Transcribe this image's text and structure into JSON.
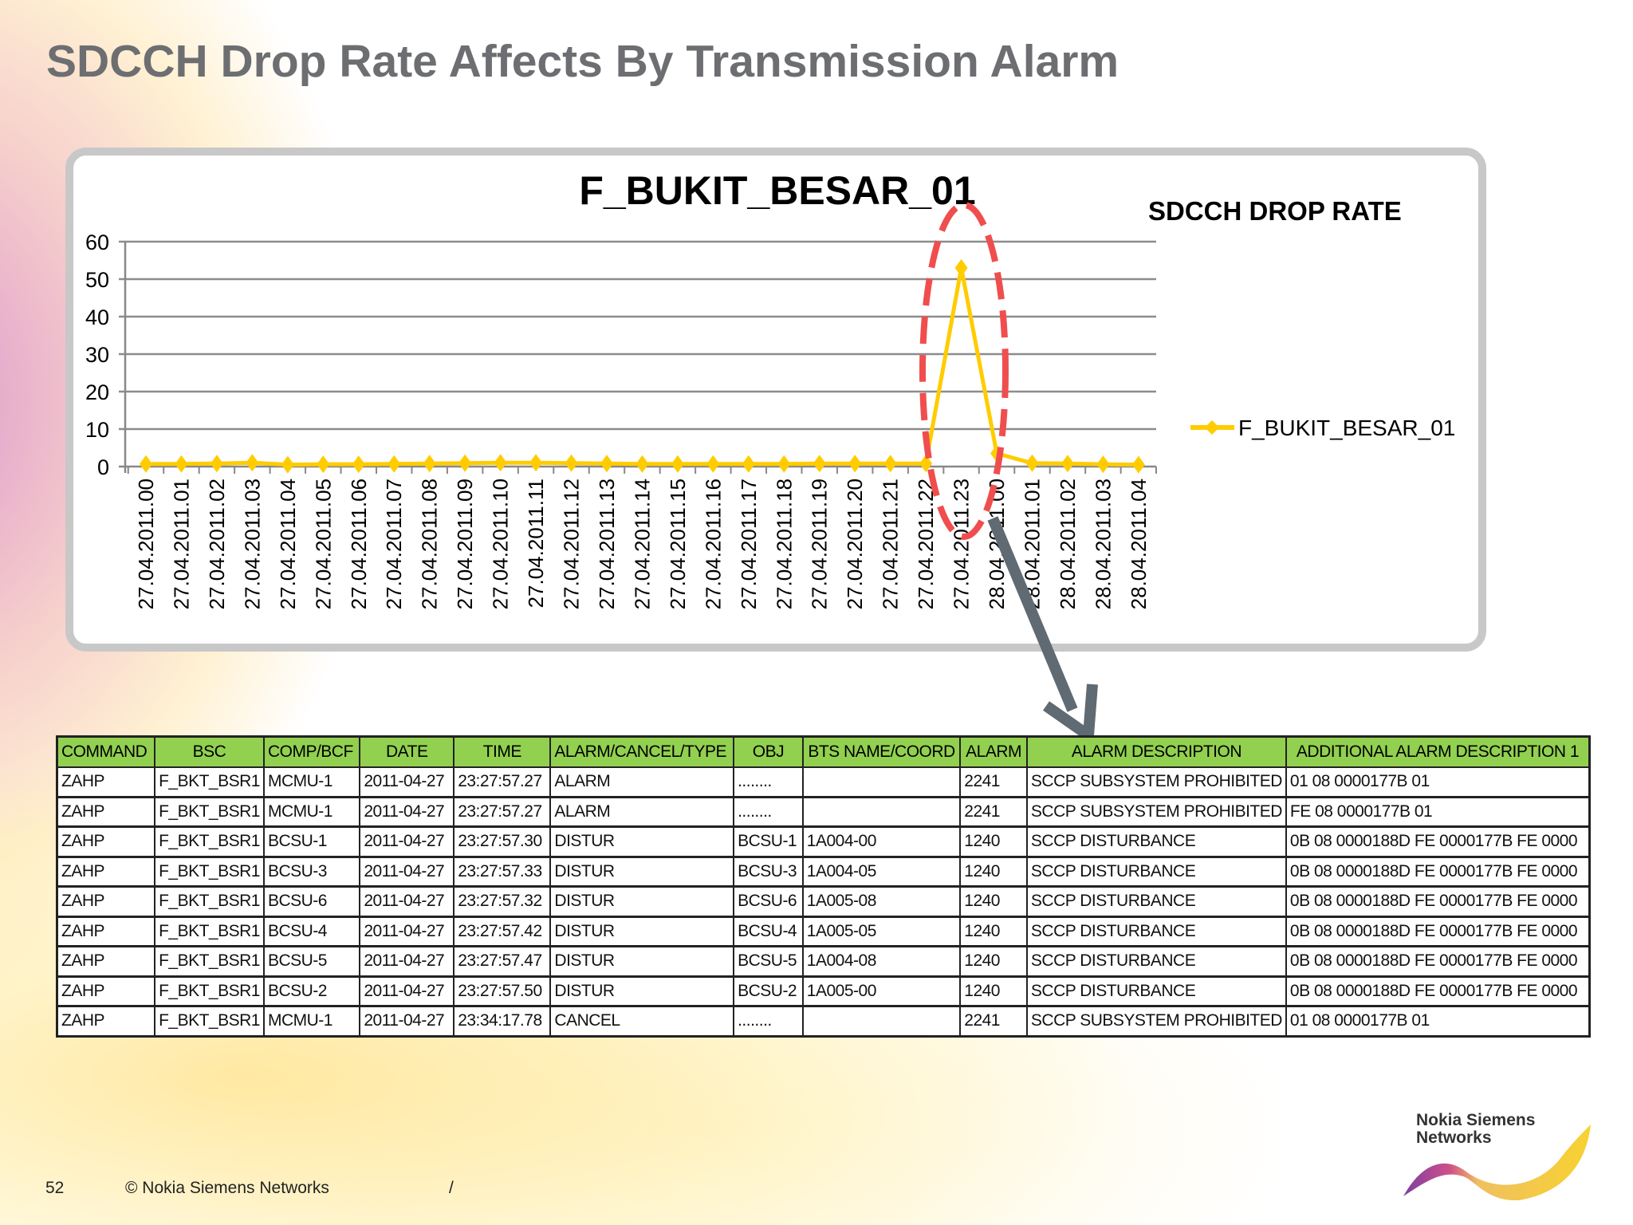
{
  "slide": {
    "title": "SDCCH Drop Rate Affects By Transmission Alarm",
    "page_number": "52",
    "copyright": "© Nokia Siemens Networks",
    "separator": "/",
    "logo_text": [
      "Nokia Siemens",
      "Networks"
    ]
  },
  "chart_data": {
    "type": "line",
    "title": "F_BUKIT_BESAR_01",
    "side_label": "SDCCH DROP RATE",
    "legend": "right",
    "grid": true,
    "ylim": [
      0,
      60
    ],
    "yticks": [
      "0",
      "10",
      "20",
      "30",
      "40",
      "50",
      "60"
    ],
    "line_color": "#ffcc00",
    "highlight_color": "#f04e4e",
    "arrow_color": "#5f6a72",
    "categories": [
      "27.04.2011.00",
      "27.04.2011.01",
      "27.04.2011.02",
      "27.04.2011.03",
      "27.04.2011.04",
      "27.04.2011.05",
      "27.04.2011.06",
      "27.04.2011.07",
      "27.04.2011.08",
      "27.04.2011.09",
      "27.04.2011.10",
      "27.04.2011.11",
      "27.04.2011.12",
      "27.04.2011.13",
      "27.04.2011.14",
      "27.04.2011.15",
      "27.04.2011.16",
      "27.04.2011.17",
      "27.04.2011.18",
      "27.04.2011.19",
      "27.04.2011.20",
      "27.04.2011.21",
      "27.04.2011.22",
      "27.04.2011.23",
      "28.04.2011.00",
      "28.04.2011.01",
      "28.04.2011.02",
      "28.04.2011.03",
      "28.04.2011.04"
    ],
    "series": [
      {
        "name": "F_BUKIT_BESAR_01",
        "values": [
          0.7,
          0.7,
          0.8,
          1.0,
          0.5,
          0.6,
          0.6,
          0.7,
          0.8,
          0.9,
          1.0,
          1.0,
          0.9,
          0.8,
          0.7,
          0.7,
          0.7,
          0.7,
          0.7,
          0.8,
          0.8,
          0.8,
          0.8,
          53,
          3.5,
          0.9,
          0.8,
          0.6,
          0.5
        ]
      }
    ]
  },
  "table": {
    "header_color": "#92d050",
    "columns": [
      "COMMAND",
      "BSC",
      "COMP/BCF",
      "DATE",
      "TIME",
      "ALARM/CANCEL/TYPE",
      "OBJ",
      "BTS NAME/COORD",
      "ALARM",
      "ALARM DESCRIPTION",
      "ADDITIONAL ALARM DESCRIPTION 1"
    ],
    "rows": [
      [
        "ZAHP",
        "F_BKT_BSR1",
        "MCMU-1",
        "2011-04-27",
        "23:27:57.27",
        "ALARM",
        "........",
        "",
        "2241",
        "SCCP SUBSYSTEM PROHIBITED",
        "01 08 0000177B 01"
      ],
      [
        "ZAHP",
        "F_BKT_BSR1",
        "MCMU-1",
        "2011-04-27",
        "23:27:57.27",
        "ALARM",
        "........",
        "",
        "2241",
        "SCCP SUBSYSTEM PROHIBITED",
        "FE 08 0000177B 01"
      ],
      [
        "ZAHP",
        "F_BKT_BSR1",
        "BCSU-1",
        "2011-04-27",
        "23:27:57.30",
        "DISTUR",
        "BCSU-1",
        "1A004-00",
        "1240",
        "SCCP DISTURBANCE",
        "0B 08 0000188D FE 0000177B FE 0000"
      ],
      [
        "ZAHP",
        "F_BKT_BSR1",
        "BCSU-3",
        "2011-04-27",
        "23:27:57.33",
        "DISTUR",
        "BCSU-3",
        "1A004-05",
        "1240",
        "SCCP DISTURBANCE",
        "0B 08 0000188D FE 0000177B FE 0000"
      ],
      [
        "ZAHP",
        "F_BKT_BSR1",
        "BCSU-6",
        "2011-04-27",
        "23:27:57.32",
        "DISTUR",
        "BCSU-6",
        "1A005-08",
        "1240",
        "SCCP DISTURBANCE",
        "0B 08 0000188D FE 0000177B FE 0000"
      ],
      [
        "ZAHP",
        "F_BKT_BSR1",
        "BCSU-4",
        "2011-04-27",
        "23:27:57.42",
        "DISTUR",
        "BCSU-4",
        "1A005-05",
        "1240",
        "SCCP DISTURBANCE",
        "0B 08 0000188D FE 0000177B FE 0000"
      ],
      [
        "ZAHP",
        "F_BKT_BSR1",
        "BCSU-5",
        "2011-04-27",
        "23:27:57.47",
        "DISTUR",
        "BCSU-5",
        "1A004-08",
        "1240",
        "SCCP DISTURBANCE",
        "0B 08 0000188D FE 0000177B FE 0000"
      ],
      [
        "ZAHP",
        "F_BKT_BSR1",
        "BCSU-2",
        "2011-04-27",
        "23:27:57.50",
        "DISTUR",
        "BCSU-2",
        "1A005-00",
        "1240",
        "SCCP DISTURBANCE",
        "0B 08 0000188D FE 0000177B FE 0000"
      ],
      [
        "ZAHP",
        "F_BKT_BSR1",
        "MCMU-1",
        "2011-04-27",
        "23:34:17.78",
        "CANCEL",
        "........",
        "",
        "2241",
        "SCCP SUBSYSTEM PROHIBITED",
        "01 08 0000177B 01"
      ]
    ]
  }
}
